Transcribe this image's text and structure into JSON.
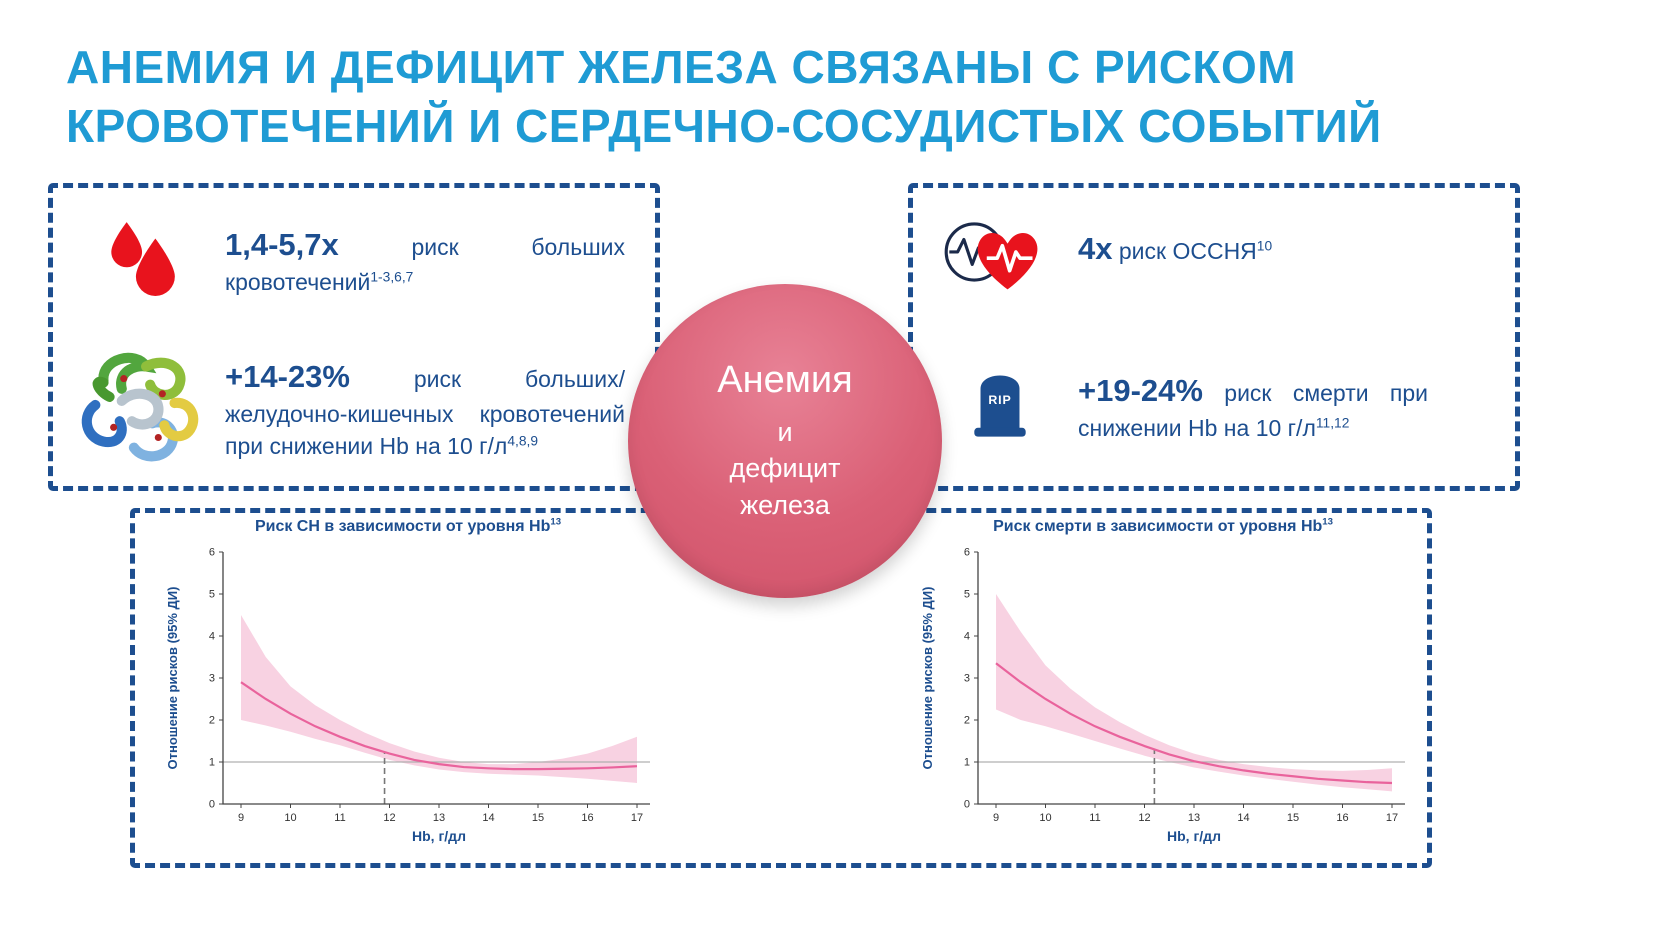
{
  "title": {
    "line1": "АНЕМИЯ И ДЕФИЦИТ ЖЕЛЕЗА СВЯЗАНЫ С РИСКОМ",
    "line2": "КРОВОТЕЧЕНИЙ И СЕРДЕЧНО-СОСУДИСТЫХ СОБЫТИЙ"
  },
  "colors": {
    "title_blue": "#1f9bd4",
    "dark_blue": "#1d4e8f",
    "red": "#e8131d",
    "pink_line": "#e9639c",
    "pink_band": "#f8d2e2",
    "axis_gray": "#444444",
    "ref_line_gray": "#b0b0b0"
  },
  "left_panel": {
    "items": [
      {
        "icon": "blood-drops-icon",
        "stat": "1,4-5,7x",
        "text": "риск больших кровотечений",
        "sup": "1-3,6,7"
      },
      {
        "icon": "hemoglobin-icon",
        "stat": "+14-23%",
        "text": "риск больших/желудочно-кишечных кровотечений при снижении Hb на 10 г/л",
        "sup": "4,8,9"
      }
    ]
  },
  "right_panel": {
    "items": [
      {
        "icon": "heart-ecg-icon",
        "stat": "4x",
        "text": "риск ОССНЯ",
        "sup": "10"
      },
      {
        "icon": "tombstone-icon",
        "tombstone_label": "RIP",
        "stat": "+19-24%",
        "text": "риск смерти при снижении Hb на 10 г/л",
        "sup": "11,12"
      }
    ]
  },
  "center_circle": {
    "lines": [
      "Анемия",
      "и",
      "дефицит",
      "железа"
    ]
  },
  "chart_data": [
    {
      "type": "line",
      "title": "Риск СН в зависимости от уровня Hb",
      "title_sup": "13",
      "xlabel": "Hb, г/дл",
      "ylabel": "Отношение рисков (95% ДИ)",
      "xlim": [
        9,
        17
      ],
      "ylim": [
        0,
        6
      ],
      "xticks": [
        9,
        10,
        11,
        12,
        13,
        14,
        15,
        16,
        17
      ],
      "yticks": [
        0,
        1,
        2,
        3,
        4,
        5,
        6
      ],
      "reference_line_y": 1,
      "dashed_vline_x": 11.9,
      "legend": "none",
      "grid": false,
      "x": [
        9,
        9.5,
        10,
        10.5,
        11,
        11.5,
        12,
        12.5,
        13,
        13.5,
        14,
        14.5,
        15,
        15.5,
        16,
        16.5,
        17
      ],
      "y": [
        2.9,
        2.5,
        2.15,
        1.85,
        1.6,
        1.38,
        1.2,
        1.05,
        0.95,
        0.88,
        0.85,
        0.83,
        0.83,
        0.84,
        0.85,
        0.87,
        0.9
      ],
      "band_upper": [
        4.5,
        3.5,
        2.8,
        2.35,
        2.0,
        1.7,
        1.45,
        1.25,
        1.1,
        1.0,
        0.95,
        0.95,
        1.0,
        1.08,
        1.2,
        1.38,
        1.6
      ],
      "band_lower": [
        2.0,
        1.87,
        1.72,
        1.55,
        1.4,
        1.22,
        1.05,
        0.92,
        0.82,
        0.76,
        0.72,
        0.7,
        0.68,
        0.64,
        0.6,
        0.55,
        0.5
      ]
    },
    {
      "type": "line",
      "title": "Риск смерти в зависимости от уровня Hb",
      "title_sup": "13",
      "xlabel": "Hb, г/дл",
      "ylabel": "Отношение рисков (95% ДИ)",
      "xlim": [
        9,
        17
      ],
      "ylim": [
        0,
        6
      ],
      "xticks": [
        9,
        10,
        11,
        12,
        13,
        14,
        15,
        16,
        17
      ],
      "yticks": [
        0,
        1,
        2,
        3,
        4,
        5,
        6
      ],
      "reference_line_y": 1,
      "dashed_vline_x": 12.2,
      "legend": "none",
      "grid": false,
      "x": [
        9,
        9.5,
        10,
        10.5,
        11,
        11.5,
        12,
        12.5,
        13,
        13.5,
        14,
        14.5,
        15,
        15.5,
        16,
        16.5,
        17
      ],
      "y": [
        3.35,
        2.9,
        2.5,
        2.15,
        1.85,
        1.6,
        1.38,
        1.18,
        1.02,
        0.9,
        0.8,
        0.72,
        0.66,
        0.6,
        0.56,
        0.52,
        0.5
      ],
      "band_upper": [
        5.0,
        4.1,
        3.3,
        2.75,
        2.3,
        1.95,
        1.65,
        1.4,
        1.2,
        1.05,
        0.95,
        0.88,
        0.83,
        0.8,
        0.79,
        0.81,
        0.85
      ],
      "band_lower": [
        2.25,
        2.0,
        1.85,
        1.68,
        1.5,
        1.32,
        1.15,
        1.0,
        0.87,
        0.77,
        0.68,
        0.6,
        0.53,
        0.46,
        0.4,
        0.35,
        0.3
      ]
    }
  ]
}
